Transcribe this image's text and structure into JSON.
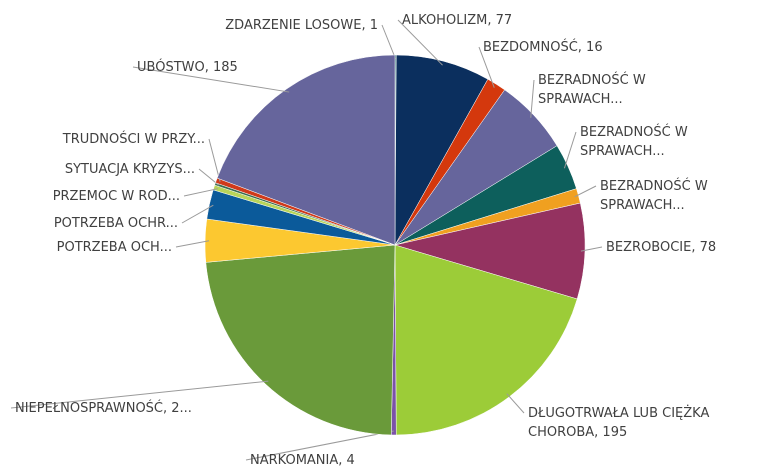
{
  "chart_data": {
    "type": "pie",
    "labels": [
      "ZDARZENIE LOSOWE, 1",
      "ALKOHOLIZM, 77",
      "BEZDOMNOŚĆ, 16",
      "BEZRADNOŚĆ W\nSPRAWACH...",
      "BEZRADNOŚĆ W\nSPRAWACH...",
      "BEZRADNOŚĆ W\nSPRAWACH...",
      "BEZROBOCIE, 78",
      "DŁUGOTRWAŁA LUB CIĘŻKA\nCHOROBA, 195",
      "NARKOMANIA, 4",
      "NIEPEŁNOSPRAWNOŚĆ, 2...",
      "POTRZEBA OCH...",
      "POTRZEBA OCHR...",
      "PRZEMOC W ROD...",
      "SYTUACJA KRYZYS...",
      "TRUDNOŚCI W PRZY...",
      "UBÓSTWO, 185"
    ],
    "values": [
      1,
      77,
      16,
      62,
      38,
      12,
      78,
      195,
      4,
      223,
      35,
      24,
      4,
      2,
      4,
      185
    ],
    "colors": [
      "#2d7a78",
      "#0b2f5e",
      "#d4380d",
      "#66659c",
      "#0d5f5c",
      "#f0a020",
      "#943260",
      "#9ccc38",
      "#7b52a8",
      "#6a9a3a",
      "#fcc830",
      "#0b5a9a",
      "#b8d45a",
      "#3a6e50",
      "#d03a1a",
      "#66659c"
    ]
  }
}
